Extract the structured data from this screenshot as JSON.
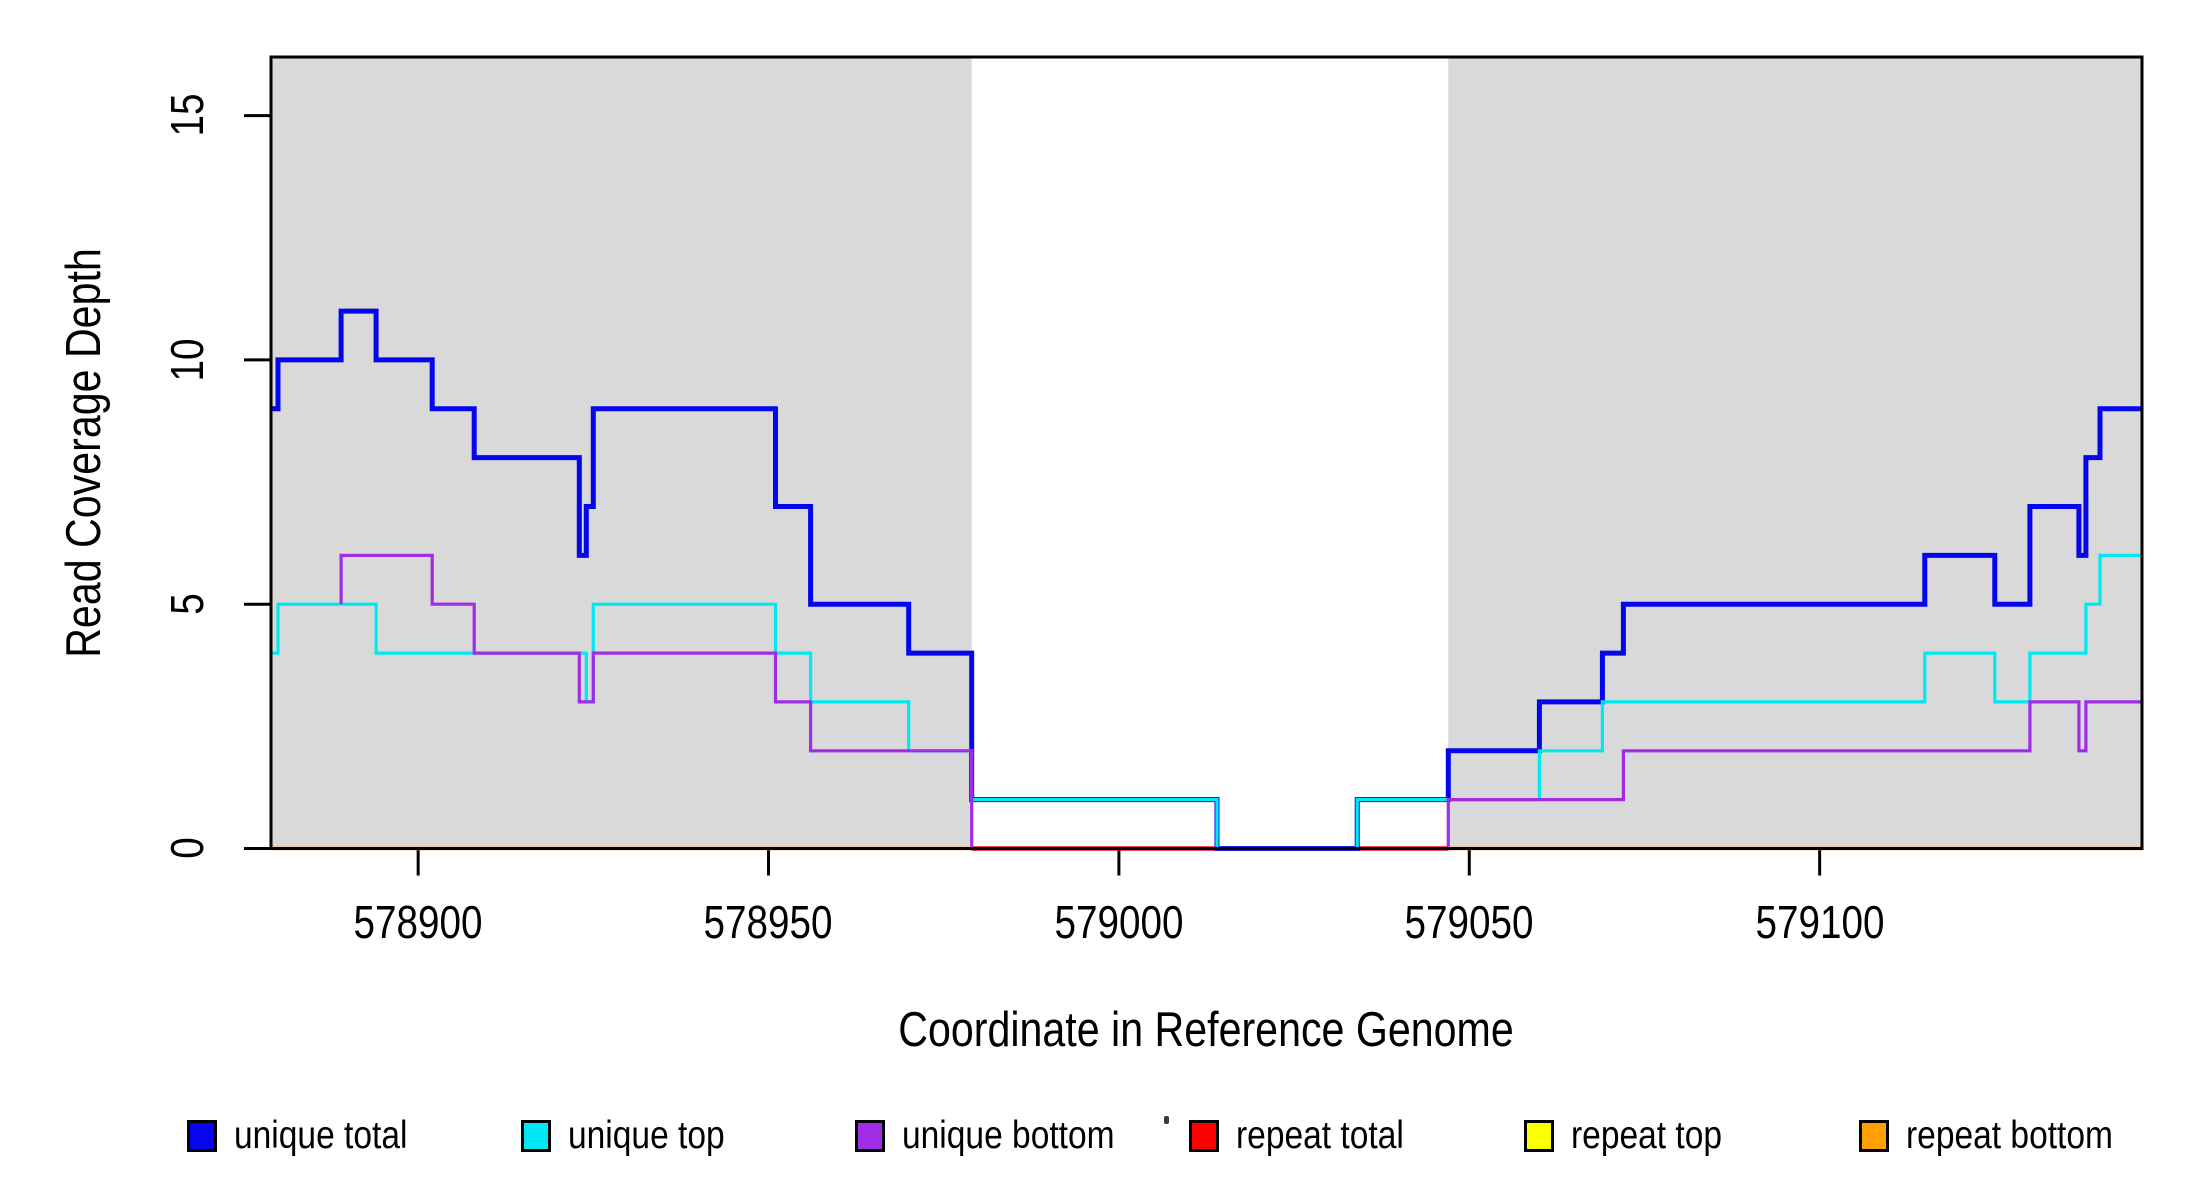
{
  "chart_data": {
    "type": "line",
    "subtype": "step-coverage-plot",
    "xlabel": "Coordinate in Reference Genome",
    "ylabel": "Read Coverage Depth",
    "xlim": [
      578879,
      579146
    ],
    "ylim": [
      0,
      16.2
    ],
    "grid": false,
    "x_ticks": [
      578900,
      578950,
      579000,
      579050,
      579100
    ],
    "x_tick_labels": [
      "578900",
      "578950",
      "579000",
      "579050",
      "579100"
    ],
    "y_ticks": [
      0,
      5,
      10,
      15
    ],
    "y_tick_labels": [
      "0",
      "5",
      "10",
      "15"
    ],
    "band_color": "#D9D9D9",
    "background_color": "#FFFFFF",
    "shaded_regions": [
      {
        "start": 578879,
        "end": 578979
      },
      {
        "start": 579047,
        "end": 579146
      }
    ],
    "legend_position": "bottom-horizontal",
    "draw_order": [
      "repeat_total",
      "unique_total",
      "unique_top",
      "unique_bottom",
      "repeat_top",
      "repeat_bottom"
    ],
    "series": [
      {
        "id": "unique_total",
        "name": "unique total",
        "color": "#0606EC",
        "line_width": 5,
        "segments": [
          {
            "steps": [
              [
                578879,
                9
              ],
              [
                578880,
                10
              ],
              [
                578889,
                11
              ],
              [
                578894,
                10
              ],
              [
                578902,
                9
              ],
              [
                578908,
                8
              ],
              [
                578923,
                6
              ],
              [
                578924,
                7
              ],
              [
                578925,
                9
              ],
              [
                578951,
                7
              ],
              [
                578956,
                5
              ],
              [
                578970,
                4
              ],
              [
                578979,
                1
              ],
              [
                579014,
                0
              ],
              [
                579034,
                1
              ],
              [
                579047,
                2
              ],
              [
                579060,
                3
              ],
              [
                579069,
                4
              ],
              [
                579072,
                5
              ],
              [
                579115,
                6
              ],
              [
                579125,
                5
              ],
              [
                579130,
                7
              ],
              [
                579137,
                6
              ],
              [
                579138,
                8
              ],
              [
                579140,
                9
              ]
            ],
            "end": 579146
          }
        ]
      },
      {
        "id": "unique_top",
        "name": "unique top",
        "color": "#00E9F2",
        "line_width": 3.2,
        "segments": [
          {
            "steps": [
              [
                578879,
                4
              ],
              [
                578880,
                5
              ],
              [
                578894,
                4
              ],
              [
                578924,
                3
              ],
              [
                578925,
                5
              ],
              [
                578951,
                4
              ],
              [
                578956,
                3
              ],
              [
                578970,
                2
              ],
              [
                578979,
                1
              ],
              [
                579014,
                0
              ],
              [
                579034,
                1
              ],
              [
                579060,
                2
              ],
              [
                579069,
                3
              ],
              [
                579115,
                4
              ],
              [
                579125,
                3
              ],
              [
                579130,
                4
              ],
              [
                579138,
                5
              ],
              [
                579140,
                6
              ]
            ],
            "end": 579146
          }
        ]
      },
      {
        "id": "unique_bottom",
        "name": "unique bottom",
        "color": "#A02CE8",
        "line_width": 3.2,
        "segments": [
          {
            "steps": [
              [
                578889,
                5
              ],
              [
                578889,
                6
              ],
              [
                578902,
                5
              ],
              [
                578908,
                4
              ],
              [
                578923,
                3
              ],
              [
                578925,
                4
              ],
              [
                578951,
                3
              ],
              [
                578956,
                2
              ],
              [
                578979,
                0
              ],
              [
                579047,
                1
              ],
              [
                579072,
                2
              ],
              [
                579130,
                3
              ],
              [
                579137,
                2
              ],
              [
                579138,
                3
              ]
            ],
            "end": 579146
          }
        ]
      },
      {
        "id": "repeat_total",
        "name": "repeat total",
        "color": "#FA0000",
        "line_width": 4.6,
        "segments": [
          {
            "steps": [
              [
                578979,
                0
              ]
            ],
            "end": 579047
          }
        ]
      },
      {
        "id": "repeat_top",
        "name": "repeat top",
        "color": "#FCFF00",
        "line_width": 3.2,
        "segments": []
      },
      {
        "id": "repeat_bottom",
        "name": "repeat bottom",
        "color": "#FFA000",
        "line_width": 3.6,
        "segments": [
          {
            "steps": [
              [
                578879,
                0
              ]
            ],
            "end": 578979
          },
          {
            "steps": [
              [
                579047,
                0
              ]
            ],
            "end": 579146
          }
        ]
      }
    ]
  }
}
